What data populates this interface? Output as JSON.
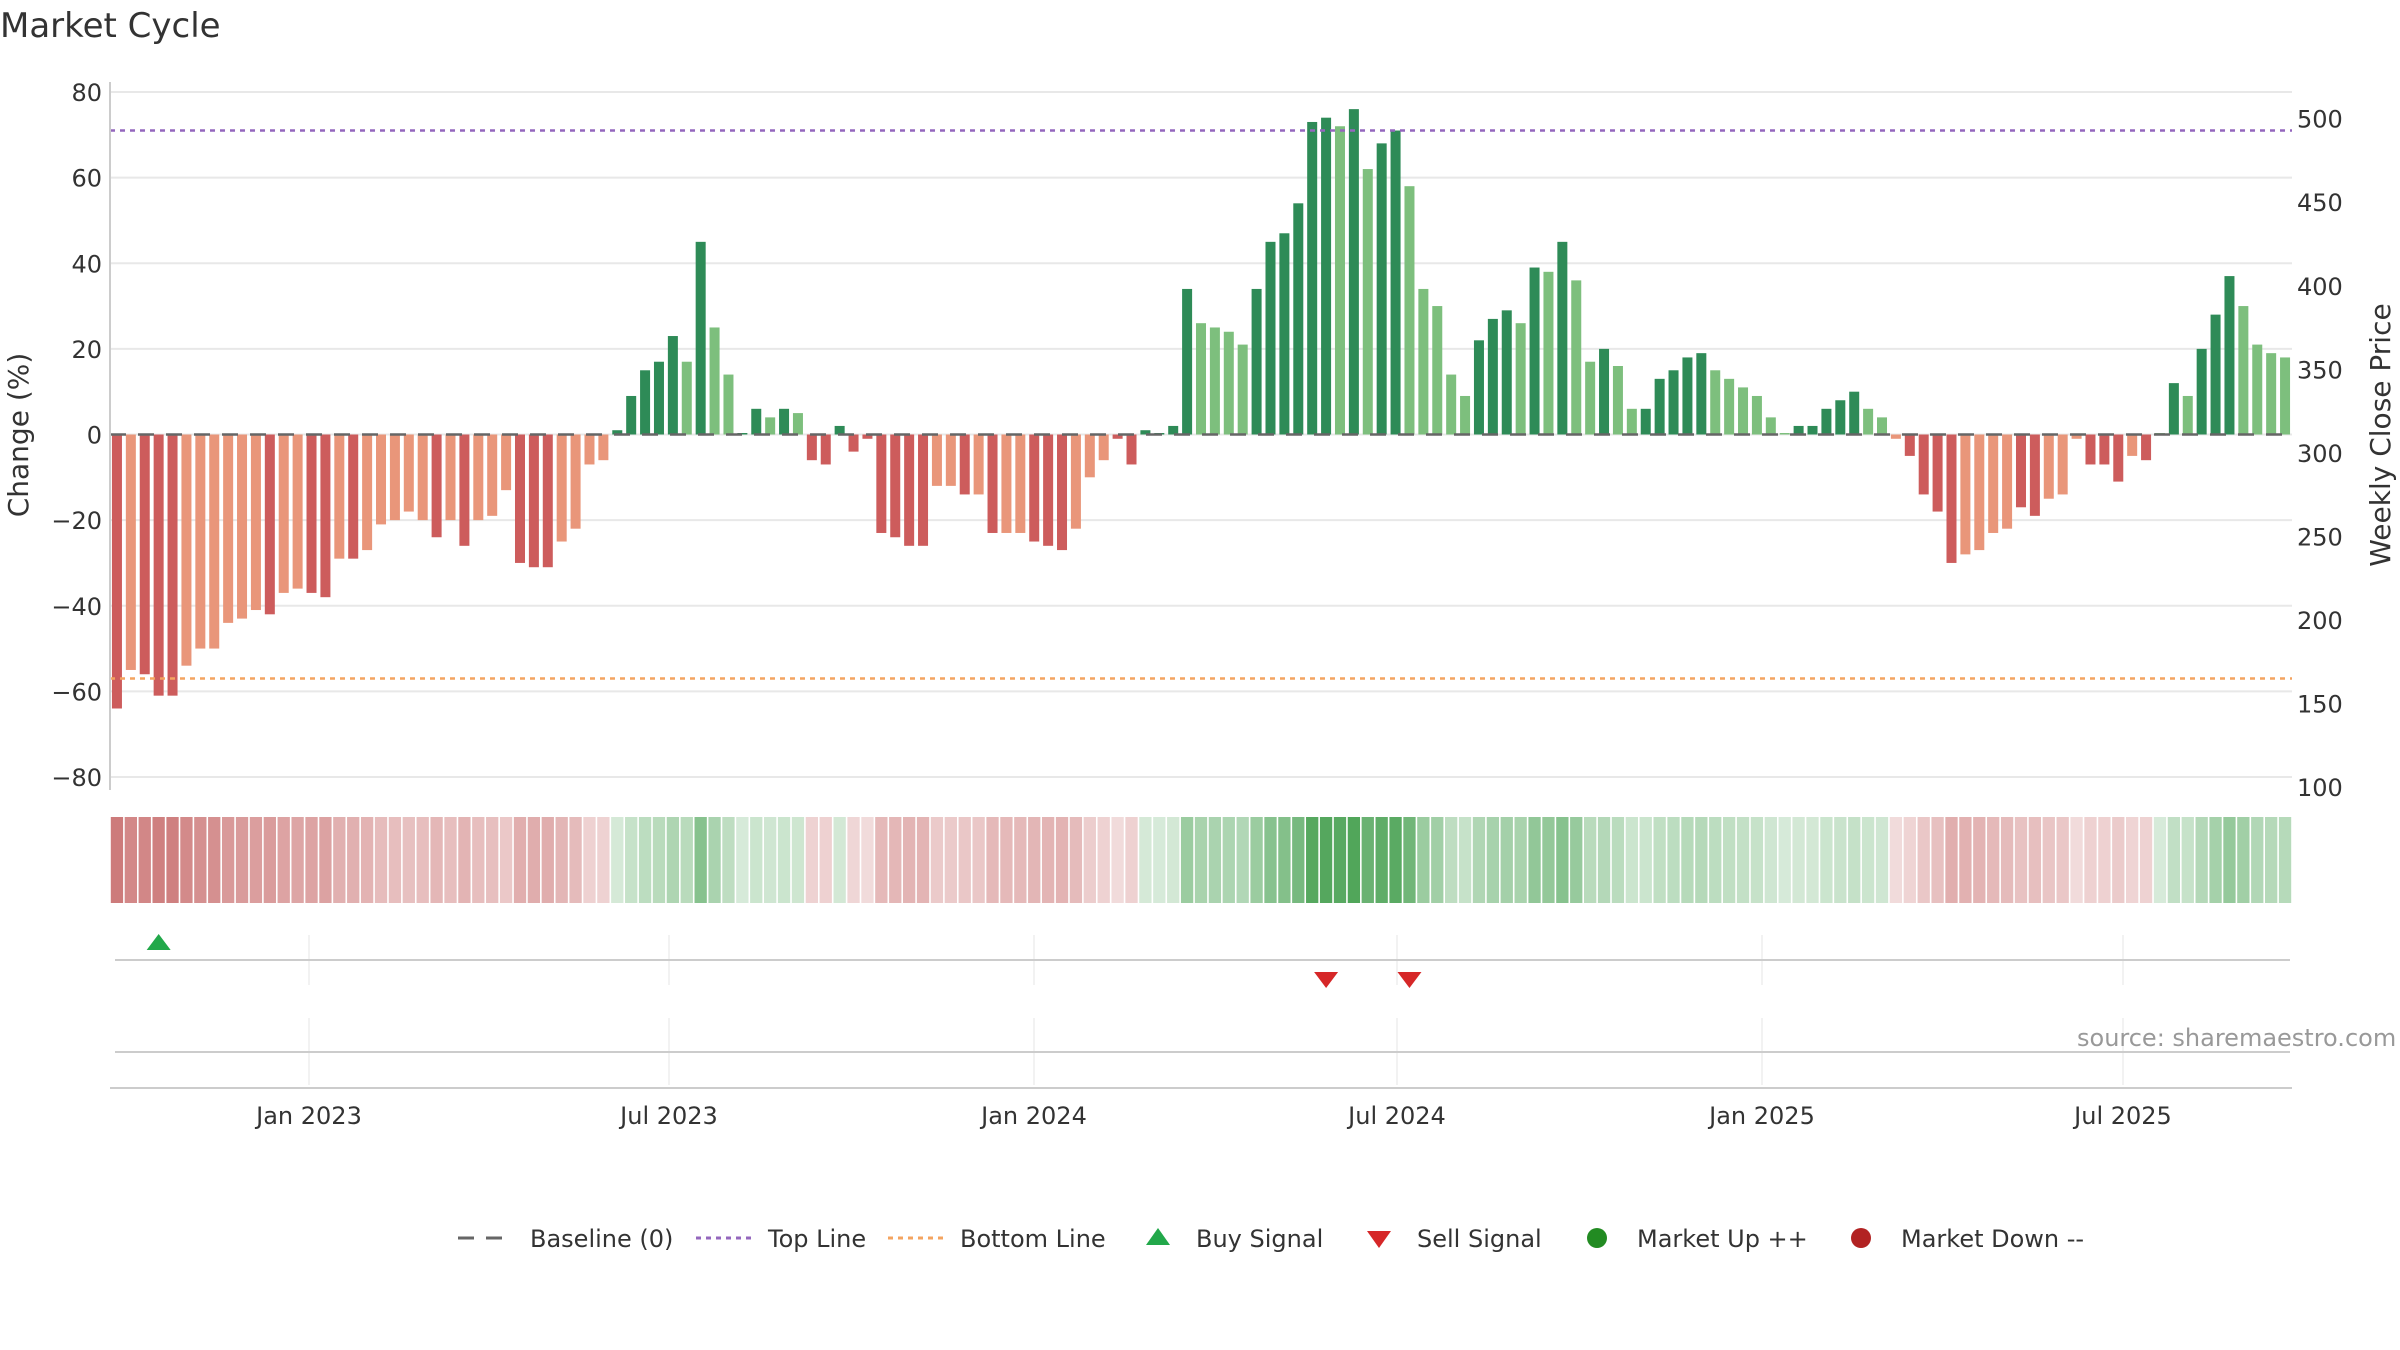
{
  "title": "Market Cycle",
  "source": "source: sharemaestro.com",
  "colors": {
    "up_strong": "#2e8b57",
    "up_light": "#7dbf7d",
    "down_strong": "#cd5c5c",
    "down_light": "#e9967a",
    "top_line": "#9467bd",
    "bottom_line": "#f4a460",
    "baseline": "#666666",
    "buy": "#22a84a",
    "sell": "#d62728",
    "market_up": "#228b22",
    "market_down": "#b22222"
  },
  "chart_data": {
    "type": "bar",
    "title": "Market Cycle",
    "ylabel": "Change (%)",
    "y2label": "Weekly Close Price",
    "ylim": [
      -80,
      80
    ],
    "y2lim": [
      100,
      510
    ],
    "yticks": [
      "80",
      "60",
      "40",
      "20",
      "0",
      "−20",
      "−40",
      "−60",
      "−80"
    ],
    "y2ticks": [
      "500",
      "450",
      "400",
      "350",
      "300",
      "250",
      "200",
      "150",
      "100"
    ],
    "xticks": [
      "Jan 2023",
      "Jul 2023",
      "Jan 2024",
      "Jul 2024",
      "Jan 2025",
      "Jul 2025"
    ],
    "top_line": 71,
    "bottom_line": -57,
    "grid": true,
    "legend_position": "bottom",
    "series": [
      {
        "values": [
          -64,
          -55,
          -56,
          -61,
          -61,
          -54,
          -50,
          -50,
          -44,
          -43,
          -41,
          -42,
          -37,
          -36,
          -37,
          -38,
          -29,
          -29,
          -27,
          -21,
          -20,
          -18,
          -20,
          -24,
          -20,
          -26,
          -20,
          -19,
          -13,
          -30,
          -31,
          -31,
          -25,
          -22,
          -7,
          -6,
          1,
          9,
          15,
          17,
          23,
          17,
          45,
          25,
          14,
          0,
          6,
          4,
          6,
          5,
          -6,
          -7,
          2,
          -4,
          -1,
          -23,
          -24,
          -26,
          -26,
          -12,
          -12,
          -14,
          -14,
          -23,
          -23,
          -23,
          -25,
          -26,
          -27,
          -22,
          -10,
          -6,
          -1,
          -7,
          1,
          0,
          2,
          34,
          26,
          25,
          24,
          21,
          34,
          45,
          47,
          54,
          73,
          74,
          72,
          76,
          62,
          68,
          71,
          58,
          34,
          30,
          14,
          9,
          22,
          27,
          29,
          26,
          39,
          38,
          45,
          36,
          17,
          20,
          16,
          6,
          6,
          13,
          15,
          18,
          19,
          15,
          13,
          11,
          9,
          4,
          0,
          2,
          2,
          6,
          8,
          10,
          6,
          4,
          -1,
          -5,
          -14,
          -18,
          -30,
          -28,
          -27,
          -23,
          -22,
          -17,
          -19,
          -15,
          -14,
          -1,
          -7,
          -7,
          -11,
          -5,
          -6,
          0,
          12,
          9,
          20,
          28,
          37,
          30,
          21,
          19,
          18
        ],
        "strength": [
          "s",
          "l",
          "s",
          "s",
          "s",
          "l",
          "l",
          "l",
          "l",
          "l",
          "l",
          "s",
          "l",
          "l",
          "s",
          "s",
          "l",
          "s",
          "l",
          "l",
          "l",
          "l",
          "l",
          "s",
          "l",
          "s",
          "l",
          "l",
          "l",
          "s",
          "s",
          "s",
          "l",
          "l",
          "l",
          "l",
          "s",
          "s",
          "s",
          "s",
          "s",
          "l",
          "s",
          "l",
          "l",
          "s",
          "s",
          "l",
          "s",
          "l",
          "s",
          "s",
          "s",
          "s",
          "s",
          "s",
          "s",
          "s",
          "s",
          "l",
          "l",
          "s",
          "l",
          "s",
          "l",
          "l",
          "s",
          "s",
          "s",
          "l",
          "l",
          "l",
          "s",
          "s",
          "s",
          "s",
          "s",
          "s",
          "l",
          "l",
          "l",
          "l",
          "s",
          "s",
          "s",
          "s",
          "s",
          "s",
          "l",
          "s",
          "l",
          "s",
          "s",
          "l",
          "l",
          "l",
          "l",
          "l",
          "s",
          "s",
          "s",
          "l",
          "s",
          "l",
          "s",
          "l",
          "l",
          "s",
          "l",
          "l",
          "s",
          "s",
          "s",
          "s",
          "s",
          "l",
          "l",
          "l",
          "l",
          "l",
          "l",
          "s",
          "s",
          "s",
          "s",
          "s",
          "l",
          "l",
          "l",
          "s",
          "s",
          "s",
          "s",
          "l",
          "l",
          "l",
          "l",
          "s",
          "s",
          "l",
          "l",
          "l",
          "s",
          "s",
          "s",
          "l",
          "s",
          "l",
          "s",
          "l",
          "s",
          "s",
          "s",
          "l",
          "l",
          "l",
          "l"
        ]
      }
    ],
    "cycle_band": [
      -64,
      -55,
      -56,
      -61,
      -61,
      -54,
      -50,
      -50,
      -44,
      -43,
      -41,
      -42,
      -37,
      -36,
      -37,
      -38,
      -29,
      -29,
      -27,
      -21,
      -20,
      -18,
      -20,
      -24,
      -20,
      -26,
      -20,
      -19,
      -13,
      -30,
      -31,
      -31,
      -25,
      -22,
      -7,
      -6,
      1,
      9,
      15,
      17,
      23,
      17,
      45,
      25,
      14,
      0,
      6,
      4,
      6,
      5,
      -6,
      -7,
      2,
      -4,
      -1,
      -23,
      -24,
      -26,
      -26,
      -12,
      -12,
      -14,
      -14,
      -23,
      -23,
      -23,
      -25,
      -26,
      -27,
      -22,
      -10,
      -6,
      -1,
      -7,
      1,
      0,
      2,
      34,
      26,
      25,
      24,
      21,
      34,
      45,
      47,
      54,
      73,
      74,
      72,
      76,
      62,
      68,
      71,
      58,
      34,
      30,
      14,
      9,
      22,
      27,
      29,
      26,
      39,
      38,
      45,
      36,
      17,
      20,
      16,
      6,
      6,
      13,
      15,
      18,
      19,
      15,
      13,
      11,
      9,
      4,
      0,
      2,
      2,
      6,
      8,
      10,
      6,
      4,
      -1,
      -5,
      -14,
      -18,
      -30,
      -28,
      -27,
      -23,
      -22,
      -17,
      -19,
      -15,
      -14,
      -1,
      -7,
      -7,
      -11,
      -5,
      -6,
      0,
      12,
      9,
      20,
      28,
      37,
      30,
      21,
      19,
      18
    ],
    "buy_signals": [
      3
    ],
    "sell_signals": [
      87,
      93
    ],
    "legend": [
      {
        "label": "Baseline (0)",
        "kind": "dash",
        "color": "#666666"
      },
      {
        "label": "Top Line",
        "kind": "dot",
        "color": "#9467bd"
      },
      {
        "label": "Bottom Line",
        "kind": "dot",
        "color": "#f4a460"
      },
      {
        "label": "Buy Signal",
        "kind": "tri-up",
        "color": "#22a84a"
      },
      {
        "label": "Sell Signal",
        "kind": "tri-down",
        "color": "#d62728"
      },
      {
        "label": "Market Up ++",
        "kind": "circle",
        "color": "#228b22"
      },
      {
        "label": "Market Down --",
        "kind": "circle",
        "color": "#b22222"
      }
    ]
  }
}
